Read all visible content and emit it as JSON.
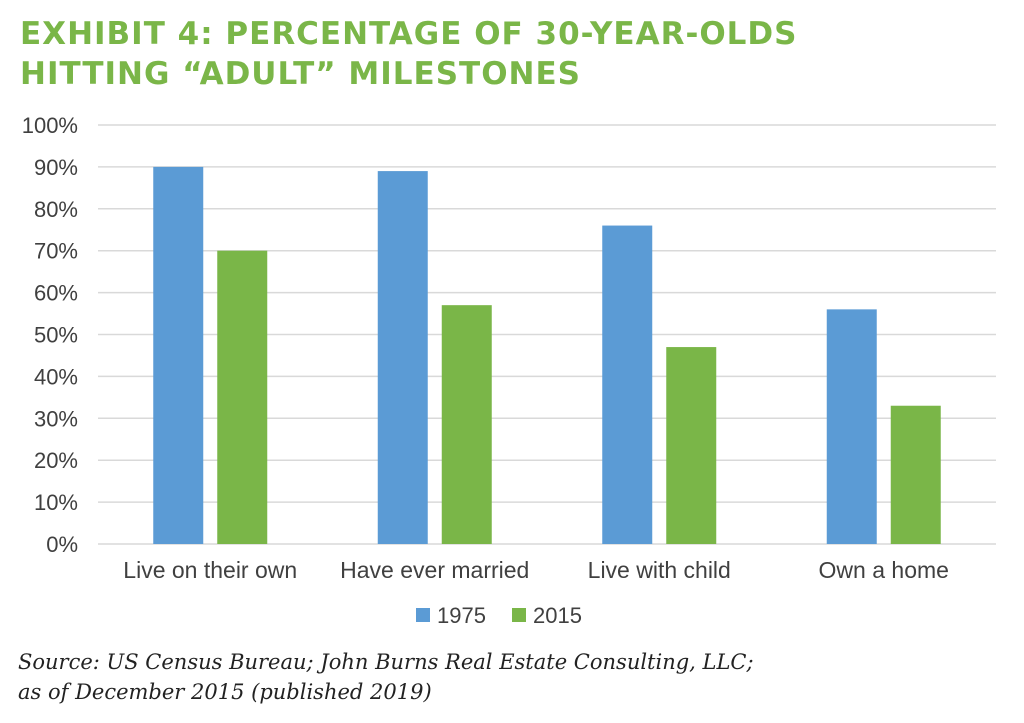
{
  "chart_data": {
    "type": "bar",
    "title_lines": [
      "EXHIBIT 4: PERCENTAGE OF 30-YEAR-OLDS",
      "HITTING “ADULT” MILESTONES"
    ],
    "categories": [
      "Live on their own",
      "Have ever married",
      "Live with child",
      "Own a home"
    ],
    "series": [
      {
        "name": "1975",
        "values": [
          90,
          89,
          76,
          56
        ],
        "color": "#5b9bd5"
      },
      {
        "name": "2015",
        "values": [
          70,
          57,
          47,
          33
        ],
        "color": "#7ab648"
      }
    ],
    "ylim": [
      0,
      100
    ],
    "yticks": [
      "0%",
      "10%",
      "20%",
      "30%",
      "40%",
      "50%",
      "60%",
      "70%",
      "80%",
      "90%",
      "100%"
    ],
    "grid": true,
    "legend": "bottom-center"
  },
  "source": {
    "lines": [
      "Source: US Census Bureau; John Burns Real Estate Consulting, LLC;",
      "as of December 2015 (published 2019)"
    ]
  },
  "colors": {
    "title": "#7ab648",
    "grid": "#d9d9d9",
    "axis_text": "#404040"
  }
}
